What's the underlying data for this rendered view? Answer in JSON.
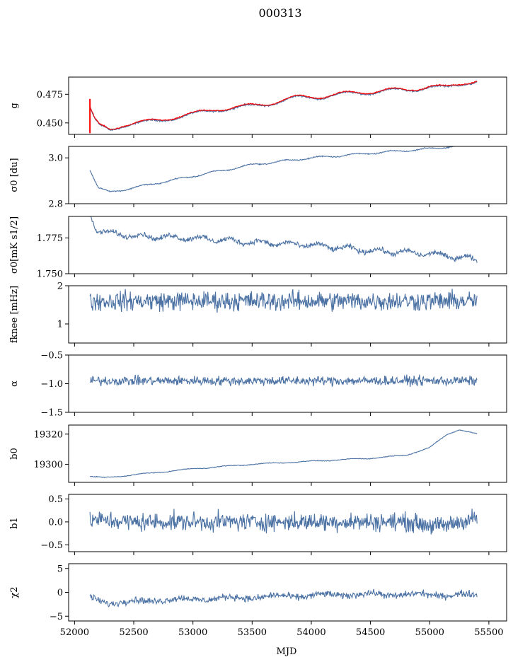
{
  "figure": {
    "title": "000313",
    "xlabel": "MJD"
  },
  "colors": {
    "series": "#4c72a4",
    "highlight": "#ff0000",
    "axes": "#000000"
  },
  "chart_data": {
    "type": "line",
    "x_range": [
      52130,
      55400
    ],
    "xlim": [
      51950,
      55650
    ],
    "xticks": [
      52000,
      52500,
      53000,
      53500,
      54000,
      54500,
      55000,
      55500
    ],
    "xtick_labels": [
      "52000",
      "52500",
      "53000",
      "53500",
      "54000",
      "54500",
      "55000",
      "55500"
    ],
    "panels": [
      {
        "id": "g",
        "ylabel": "g",
        "ylim": [
          0.44,
          0.49
        ],
        "yticks": [
          0.45,
          0.475
        ],
        "ytick_labels": [
          "0.450",
          "0.475"
        ],
        "trend": [
          [
            52130,
            0.462
          ],
          [
            52170,
            0.452
          ],
          [
            52210,
            0.447
          ],
          [
            52300,
            0.444
          ],
          [
            52400,
            0.448
          ],
          [
            52600,
            0.45
          ],
          [
            52800,
            0.454
          ],
          [
            53000,
            0.457
          ],
          [
            53200,
            0.462
          ],
          [
            53400,
            0.463
          ],
          [
            53700,
            0.468
          ],
          [
            53900,
            0.472
          ],
          [
            54100,
            0.473
          ],
          [
            54400,
            0.476
          ],
          [
            54600,
            0.478
          ],
          [
            54800,
            0.478
          ],
          [
            55000,
            0.482
          ],
          [
            55150,
            0.48
          ],
          [
            55300,
            0.485
          ],
          [
            55400,
            0.487
          ]
        ],
        "noise": 0.0006,
        "wave_amp": 0.002,
        "wave_period": 420,
        "highlight": {
          "name": "red overlay",
          "trend_offset": 0.0005,
          "spike": [
            52130,
            0.441,
            0.471
          ]
        }
      },
      {
        "id": "sigma0-du",
        "ylabel": "σ0 [du]",
        "ylim": [
          2.8,
          3.05
        ],
        "yticks": [
          2.8,
          3.0
        ],
        "ytick_labels": [
          "2.8",
          "3.0"
        ],
        "trend": [
          [
            52130,
            2.95
          ],
          [
            52200,
            2.87
          ],
          [
            52300,
            2.85
          ],
          [
            52600,
            2.88
          ],
          [
            53000,
            2.92
          ],
          [
            53500,
            2.97
          ],
          [
            54000,
            3.0
          ],
          [
            54500,
            3.02
          ],
          [
            55000,
            3.04
          ],
          [
            55400,
            3.06
          ]
        ],
        "noise": 0.002,
        "wave_amp": 0.004,
        "wave_period": 300
      },
      {
        "id": "sigma0-mks",
        "ylabel": "σ0[mK s1/2]",
        "ylim": [
          1.75,
          1.79
        ],
        "yticks": [
          1.75,
          1.775
        ],
        "ytick_labels": [
          "1.750",
          "1.775"
        ],
        "trend": [
          [
            52130,
            1.792
          ],
          [
            52180,
            1.781
          ],
          [
            52300,
            1.778
          ],
          [
            52600,
            1.776
          ],
          [
            53000,
            1.775
          ],
          [
            53500,
            1.772
          ],
          [
            54000,
            1.77
          ],
          [
            54500,
            1.766
          ],
          [
            55000,
            1.764
          ],
          [
            55300,
            1.761
          ],
          [
            55400,
            1.76
          ]
        ],
        "noise": 0.0015,
        "wave_amp": 0.0015,
        "wave_period": 250
      },
      {
        "id": "fknee",
        "ylabel": "fknee [mHz]",
        "ylim": [
          0.5,
          2.0
        ],
        "yticks": [
          1,
          2
        ],
        "ytick_labels": [
          "1",
          "2"
        ],
        "trend": [
          [
            52130,
            1.6
          ],
          [
            55400,
            1.6
          ]
        ],
        "noise": 0.22,
        "wave_amp": 0.0,
        "wave_period": 300
      },
      {
        "id": "alpha",
        "ylabel": "α",
        "ylim": [
          -1.5,
          -0.5
        ],
        "yticks": [
          -1.5,
          -1.0,
          -0.5
        ],
        "ytick_labels": [
          "−1.5",
          "−1.0",
          "−0.5"
        ],
        "trend": [
          [
            52130,
            -0.95
          ],
          [
            55400,
            -0.95
          ]
        ],
        "noise": 0.07,
        "wave_amp": 0.0,
        "wave_period": 300
      },
      {
        "id": "b0",
        "ylabel": "b0",
        "ylim": [
          19288,
          19326
        ],
        "yticks": [
          19300,
          19320
        ],
        "ytick_labels": [
          "19300",
          "19320"
        ],
        "trend": [
          [
            52130,
            19292
          ],
          [
            52250,
            19291
          ],
          [
            52500,
            19293
          ],
          [
            53000,
            19297
          ],
          [
            53500,
            19300
          ],
          [
            54000,
            19302
          ],
          [
            54500,
            19304
          ],
          [
            54800,
            19306
          ],
          [
            55000,
            19311
          ],
          [
            55150,
            19320
          ],
          [
            55250,
            19323
          ],
          [
            55400,
            19320
          ]
        ],
        "noise": 0.2,
        "wave_amp": 0.3,
        "wave_period": 350
      },
      {
        "id": "b1",
        "ylabel": "b1",
        "ylim": [
          -0.65,
          0.6
        ],
        "yticks": [
          -0.5,
          0.0,
          0.5
        ],
        "ytick_labels": [
          "−0.5",
          "0.0",
          "0.5"
        ],
        "trend": [
          [
            52130,
            0.05
          ],
          [
            52500,
            0.0
          ],
          [
            53000,
            0.0
          ],
          [
            54000,
            0.0
          ],
          [
            54800,
            0.0
          ],
          [
            55100,
            -0.1
          ],
          [
            55250,
            0.0
          ],
          [
            55400,
            0.1
          ]
        ],
        "noise": 0.17,
        "wave_amp": 0.0,
        "wave_period": 300
      },
      {
        "id": "chi2",
        "ylabel": "χ2",
        "ylim": [
          -6,
          6
        ],
        "yticks": [
          -5,
          0,
          5
        ],
        "ytick_labels": [
          "−5",
          "0",
          "5"
        ],
        "trend": [
          [
            52130,
            -1.2
          ],
          [
            52300,
            -2.2
          ],
          [
            52700,
            -1.6
          ],
          [
            53200,
            -1.3
          ],
          [
            53800,
            -0.8
          ],
          [
            54400,
            -0.4
          ],
          [
            55000,
            -0.5
          ],
          [
            55400,
            -0.6
          ]
        ],
        "noise": 0.6,
        "wave_amp": 0.3,
        "wave_period": 400
      }
    ]
  }
}
